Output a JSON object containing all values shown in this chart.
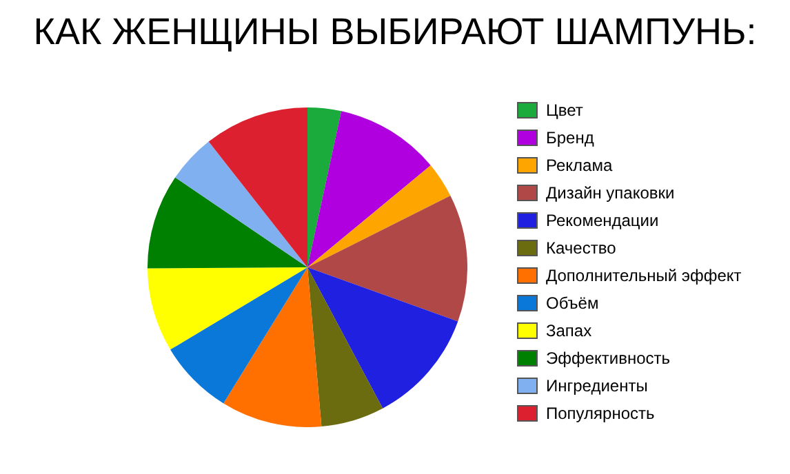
{
  "chart_data": {
    "type": "pie",
    "title": "КАК ЖЕНЩИНЫ ВЫБИРАЮТ ШАМПУНЬ:",
    "categories": [
      "Цвет",
      "Бренд",
      "Реклама",
      "Дизайн упаковки",
      "Рекомендации",
      "Качество",
      "Дополнительный эффект",
      "Объём",
      "Запах",
      "Эффективность",
      "Ингредиенты",
      "Популярность"
    ],
    "values": [
      3.4,
      10.6,
      3.6,
      12.9,
      11.7,
      6.4,
      10.2,
      7.6,
      8.5,
      9.6,
      4.9,
      10.6
    ],
    "colors": [
      "#1aab3c",
      "#b000e0",
      "#ffa500",
      "#b04848",
      "#2020e0",
      "#6b6b10",
      "#ff7000",
      "#0a78d8",
      "#ffff00",
      "#008000",
      "#80b0f0",
      "#dd2030"
    ],
    "legend": "right"
  }
}
